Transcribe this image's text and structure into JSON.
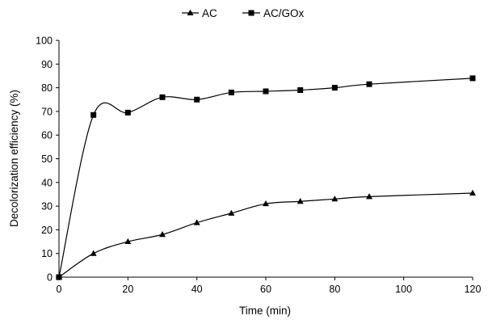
{
  "chart_data": {
    "type": "line",
    "title": "",
    "xlabel": "Time (min)",
    "ylabel": "Decolorization efficiency (%)",
    "xlim": [
      0,
      120
    ],
    "ylim": [
      0,
      100
    ],
    "xticks": [
      0,
      20,
      40,
      60,
      80,
      100,
      120
    ],
    "yticks": [
      0,
      10,
      20,
      30,
      40,
      50,
      60,
      70,
      80,
      90,
      100
    ],
    "grid": false,
    "smooth": true,
    "legend_position": "top-center",
    "series": [
      {
        "name": "AC",
        "marker": "triangle",
        "color": "#000000",
        "x": [
          0,
          10,
          20,
          30,
          40,
          50,
          60,
          70,
          80,
          90,
          120
        ],
        "y": [
          0,
          10,
          15,
          18,
          23,
          27,
          31,
          32,
          33,
          34,
          35.5
        ]
      },
      {
        "name": "AC/GOx",
        "marker": "square",
        "color": "#000000",
        "x": [
          0,
          10,
          20,
          30,
          40,
          50,
          60,
          70,
          80,
          90,
          120
        ],
        "y": [
          0,
          68.5,
          69.5,
          76,
          75,
          78,
          78.5,
          79,
          80,
          81.5,
          84
        ]
      }
    ]
  }
}
